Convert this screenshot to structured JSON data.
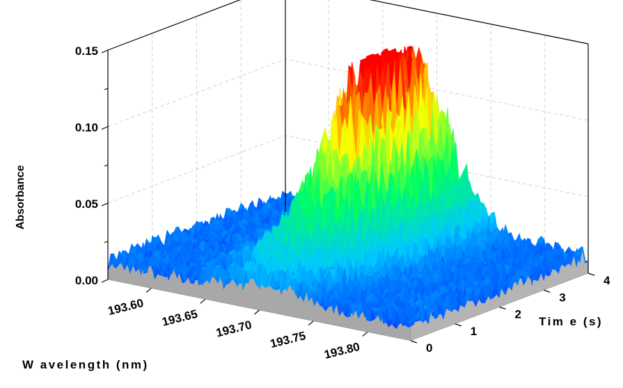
{
  "chart_data": {
    "type": "surface3d",
    "xlabel": "W avelength (nm)",
    "ylabel": "Absorbance",
    "zlabel": "Tim e (s)",
    "x_ticks": [
      "193.60",
      "193.65",
      "193.70",
      "193.75",
      "193.80"
    ],
    "x_tick_values": [
      193.6,
      193.65,
      193.7,
      193.75,
      193.8
    ],
    "y_ticks": [
      "0.00",
      "0.05",
      "0.10",
      "0.15"
    ],
    "y_tick_values": [
      0.0,
      0.05,
      0.1,
      0.15
    ],
    "t_ticks": [
      "0",
      "1",
      "2",
      "3",
      "4"
    ],
    "t_tick_values": [
      0,
      1,
      2,
      3,
      4
    ],
    "xlim": [
      193.56,
      193.84
    ],
    "ylim": [
      0.0,
      0.15
    ],
    "tlim": [
      0,
      4
    ],
    "peak": {
      "wavelength": 193.7,
      "time": 2.8,
      "absorbance": 0.12
    },
    "noise_baseline": 0.01,
    "colormap": [
      "#0000ff",
      "#00c8ff",
      "#00ff60",
      "#ffff00",
      "#ff0000"
    ],
    "grid": true
  }
}
